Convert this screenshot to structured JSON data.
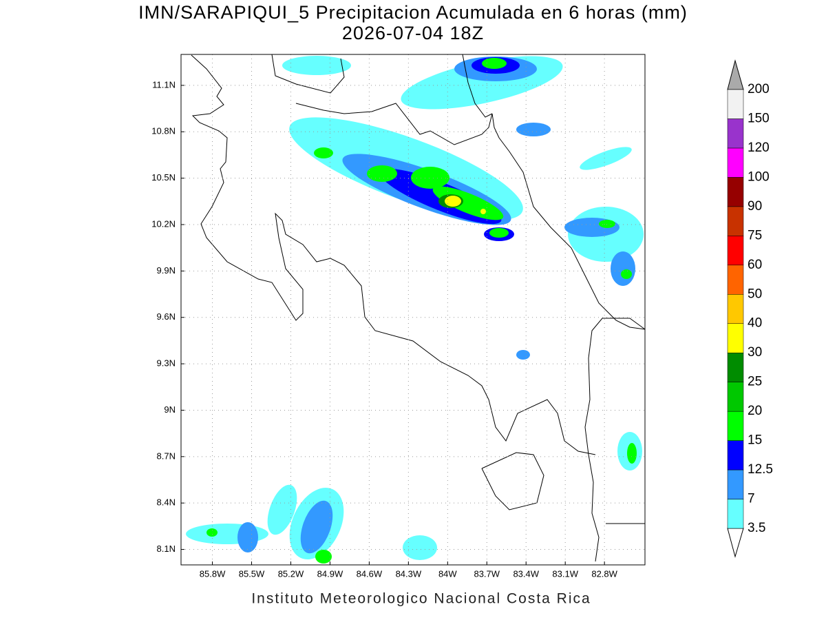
{
  "title": "IMN/SARAPIQUI_5 Precipitacion Acumulada en 6 horas (mm)",
  "subtitle": "2026-07-04 18Z",
  "map": {
    "xlim": [
      -86.04,
      -82.49
    ],
    "ylim": [
      8.0,
      11.3
    ],
    "xticks": [
      {
        "value": -85.8,
        "label": "85.8W"
      },
      {
        "value": -85.5,
        "label": "85.5W"
      },
      {
        "value": -85.2,
        "label": "85.2W"
      },
      {
        "value": -84.9,
        "label": "84.9W"
      },
      {
        "value": -84.6,
        "label": "84.6W"
      },
      {
        "value": -84.3,
        "label": "84.3W"
      },
      {
        "value": -84.0,
        "label": "84W"
      },
      {
        "value": -83.7,
        "label": "83.7W"
      },
      {
        "value": -83.4,
        "label": "83.4W"
      },
      {
        "value": -83.1,
        "label": "83.1W"
      },
      {
        "value": -82.8,
        "label": "82.8W"
      }
    ],
    "yticks": [
      {
        "value": 8.1,
        "label": "8.1N"
      },
      {
        "value": 8.4,
        "label": "8.4N"
      },
      {
        "value": 8.7,
        "label": "8.7N"
      },
      {
        "value": 9.0,
        "label": "9N"
      },
      {
        "value": 9.3,
        "label": "9.3N"
      },
      {
        "value": 9.6,
        "label": "9.6N"
      },
      {
        "value": 9.9,
        "label": "9.9N"
      },
      {
        "value": 10.2,
        "label": "10.2N"
      },
      {
        "value": 10.5,
        "label": "10.5N"
      },
      {
        "value": 10.8,
        "label": "10.8N"
      },
      {
        "value": 11.1,
        "label": "11.1N"
      }
    ],
    "grid": true
  },
  "colorbar": {
    "levels": [
      3.5,
      7,
      12.5,
      15,
      20,
      25,
      30,
      40,
      50,
      60,
      75,
      90,
      100,
      120,
      150,
      200
    ],
    "colors": [
      "#66ffff",
      "#3399ff",
      "#0000ff",
      "#00ff00",
      "#00c800",
      "#008c00",
      "#ffff00",
      "#ffc800",
      "#ff6400",
      "#ff0000",
      "#c83200",
      "#960000",
      "#ff00ff",
      "#9933cc",
      "#f2f2f2"
    ],
    "under_color": "#ffffff",
    "over_color": "#aaaaaa"
  },
  "footer": "Instituto Meteorologico Nacional Costa Rica"
}
